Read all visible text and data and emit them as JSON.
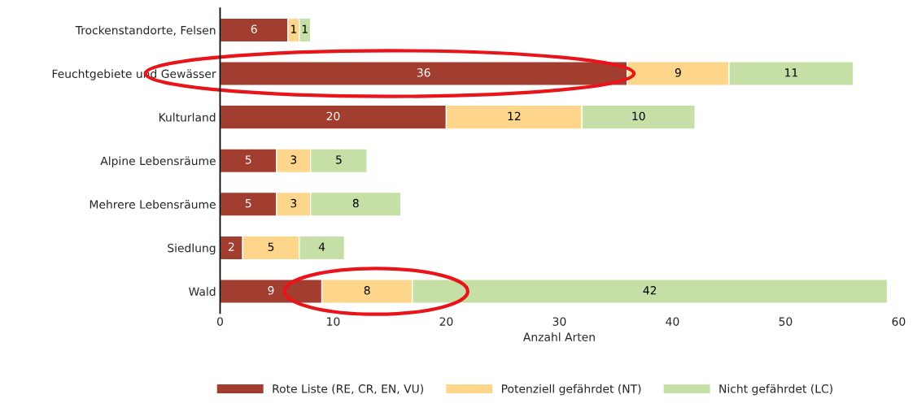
{
  "chart_data": {
    "type": "bar",
    "orientation": "horizontal",
    "stacked": true,
    "xlabel": "Anzahl Arten",
    "categories": [
      "Trockenstandorte, Felsen",
      "Feuchtgebiete und Gewässer",
      "Kulturland",
      "Alpine Lebensräume",
      "Mehrere Lebensräume",
      "Siedlung",
      "Wald"
    ],
    "series": [
      {
        "name": "Rote Liste (RE, CR, EN, VU)",
        "color": "#a23e2f",
        "values": [
          6,
          36,
          20,
          5,
          5,
          2,
          9
        ]
      },
      {
        "name": "Potenziell gefährdet (NT)",
        "color": "#fdd68b",
        "values": [
          1,
          9,
          12,
          3,
          3,
          5,
          8
        ]
      },
      {
        "name": "Nicht gefährdet (LC)",
        "color": "#c6dfa6",
        "values": [
          1,
          11,
          10,
          5,
          8,
          4,
          42
        ]
      }
    ],
    "xlim": [
      0,
      60
    ],
    "xticks": [
      0,
      10,
      20,
      30,
      40,
      50,
      60
    ],
    "data_labels": true,
    "grid": false,
    "legend": "bottom"
  }
}
